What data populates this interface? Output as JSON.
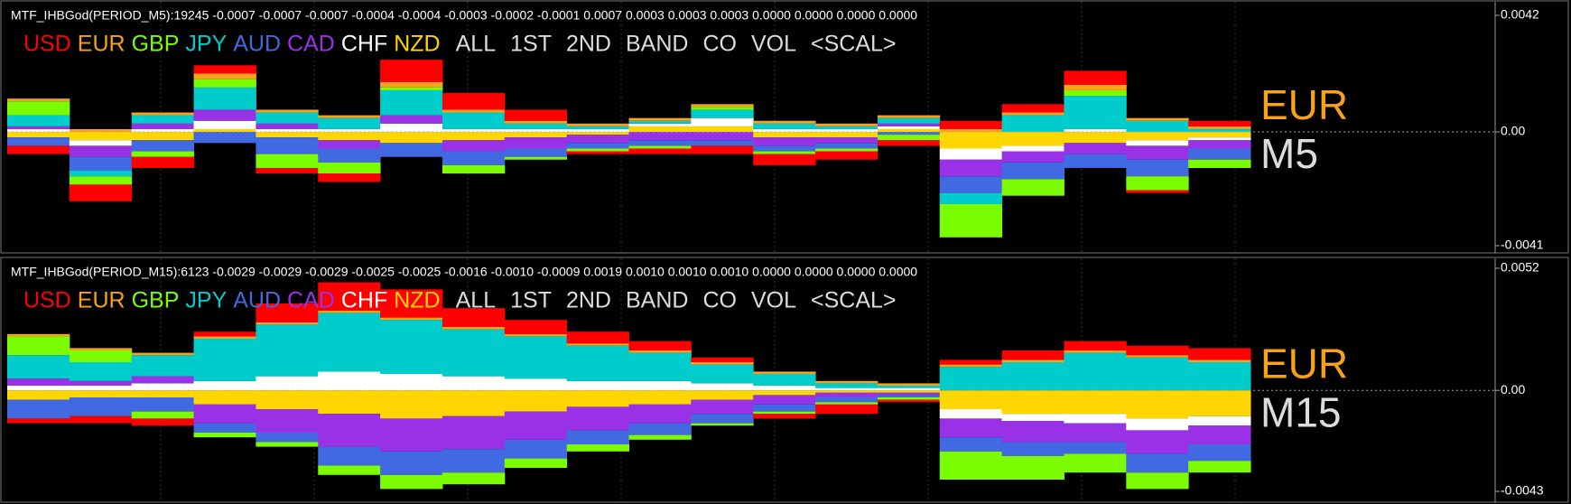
{
  "chart_data": [
    {
      "type": "bar",
      "stacked": true,
      "title": "MTF_IHBGod(PERIOD_M5):19245 -0.0007 -0.0007 -0.0007 -0.0004 -0.0004 -0.0003 -0.0002 -0.0001 0.0007 0.0003 0.0003 0.0003 0.0000 0.0000 0.0000 0.0000",
      "buttons": [
        "ALL",
        "1ST",
        "2ND",
        "BAND",
        "CO",
        "VOL",
        "<SCAL>"
      ],
      "currency_label": "EUR",
      "timeframe_label": "M5",
      "ylim": [
        -0.0041,
        0.0042
      ],
      "yticks": [
        0.0042,
        {
          "value": 0,
          "label": "0.00"
        },
        -0.0041
      ],
      "grid": true,
      "series": [
        {
          "name": "USD",
          "color": "#ff0000",
          "values": [
            -0.0003,
            -0.0006,
            -0.0004,
            0.0003,
            -0.0002,
            -0.0003,
            0.0008,
            0.0006,
            0.0004,
            -0.0001,
            -0.0002,
            -0.0003,
            -0.0004,
            -0.0003,
            -0.0002,
            0.0003,
            0.0003,
            0.0005,
            -0.0001,
            0.0002
          ]
        },
        {
          "name": "EUR",
          "color": "#f7a21b",
          "values": [
            0.0001,
            0.0001,
            0.0001,
            0.0002,
            0.0001,
            0.0001,
            0.0002,
            0.0001,
            0.0001,
            0.0001,
            0.0001,
            0.0001,
            0.0001,
            0.0001,
            0.0001,
            0.0001,
            0.0001,
            0.0002,
            0.0001,
            0.0001
          ]
        },
        {
          "name": "GBP",
          "color": "#7cfc00",
          "values": [
            0.0005,
            -0.0003,
            -0.0002,
            0.0003,
            -0.0005,
            -0.0004,
            0.0001,
            -0.0003,
            -0.0001,
            -0.0001,
            -0.0001,
            0.0001,
            -0.0001,
            -0.0001,
            -0.0002,
            -0.0012,
            -0.0006,
            0.0002,
            -0.0005,
            -0.0003
          ]
        },
        {
          "name": "JPY",
          "color": "#00cccc",
          "values": [
            0.0004,
            -0.0002,
            0.0003,
            0.0008,
            0.0004,
            0.0004,
            0.0009,
            0.0006,
            0.0002,
            0.0001,
            0.0001,
            0.0003,
            0.0002,
            0.0001,
            0.0002,
            -0.0004,
            0.0006,
            0.0012,
            0.0004,
            0.0001
          ]
        },
        {
          "name": "AUD",
          "color": "#4169e1",
          "values": [
            -0.0003,
            -0.0005,
            -0.0004,
            -0.0004,
            -0.0006,
            -0.0005,
            -0.0005,
            -0.0005,
            -0.0003,
            -0.0002,
            -0.0002,
            -0.0002,
            -0.0002,
            -0.0002,
            -0.0001,
            -0.0006,
            -0.0006,
            -0.0005,
            -0.0006,
            -0.0004
          ]
        },
        {
          "name": "CAD",
          "color": "#9932e6",
          "values": [
            0.0001,
            -0.0004,
            0.0002,
            0.0004,
            0.0002,
            -0.0003,
            0.0003,
            -0.0004,
            -0.0004,
            -0.0003,
            -0.0003,
            -0.0003,
            -0.0003,
            -0.0002,
            0.0001,
            -0.0006,
            -0.0004,
            -0.0004,
            -0.0005,
            -0.0003
          ]
        },
        {
          "name": "CHF",
          "color": "#ffffff",
          "values": [
            0.0001,
            -0.0002,
            0.0001,
            0.0003,
            0.0001,
            0.0001,
            0.0003,
            0.0001,
            0.0001,
            0.0001,
            0.0001,
            0.0003,
            0.0001,
            0.0001,
            0.0001,
            -0.0004,
            -0.0002,
            0.0001,
            -0.0002,
            -0.0001
          ]
        },
        {
          "name": "NZD",
          "color": "#ffd700",
          "values": [
            -0.0002,
            -0.0003,
            -0.0003,
            0.0001,
            -0.0002,
            -0.0003,
            -0.0004,
            -0.0003,
            -0.0002,
            -0.0001,
            0.0002,
            0.0002,
            -0.0002,
            -0.0002,
            0.0001,
            -0.0006,
            -0.0005,
            -0.0004,
            -0.0003,
            -0.0002
          ]
        }
      ]
    },
    {
      "type": "bar",
      "stacked": true,
      "title": "MTF_IHBGod(PERIOD_M15):6123 -0.0029 -0.0029 -0.0029 -0.0025 -0.0025 -0.0016 -0.0010 -0.0009 0.0019 0.0010 0.0010 0.0010 0.0000 0.0000 0.0000 0.0000",
      "buttons": [
        "ALL",
        "1ST",
        "2ND",
        "BAND",
        "CO",
        "VOL",
        "<SCAL>"
      ],
      "currency_label": "EUR",
      "timeframe_label": "M15",
      "ylim": [
        -0.0043,
        0.0052
      ],
      "yticks": [
        0.0052,
        {
          "value": 0,
          "label": "0.00"
        },
        -0.0043
      ],
      "grid": true,
      "series": [
        {
          "name": "USD",
          "color": "#ff0000",
          "values": [
            -0.0002,
            -0.0003,
            -0.0003,
            0.0002,
            0.0008,
            0.0012,
            0.0012,
            0.0008,
            0.0006,
            0.0005,
            0.0004,
            0.0002,
            -0.0002,
            -0.0004,
            -0.0001,
            0.0002,
            0.0004,
            0.0004,
            0.0004,
            0.0005
          ]
        },
        {
          "name": "EUR",
          "color": "#f7a21b",
          "values": [
            0.0001,
            0.0001,
            0.0001,
            0.0001,
            0.0001,
            0.0001,
            0.0001,
            0.0001,
            0.0001,
            0.0001,
            0.0001,
            0.0001,
            0.0001,
            0.0001,
            0.0001,
            0.0001,
            0.0001,
            0.0001,
            0.0001,
            0.0001
          ]
        },
        {
          "name": "GBP",
          "color": "#7cfc00",
          "values": [
            0.0008,
            0.0005,
            -0.0003,
            -0.0002,
            -0.0002,
            -0.0004,
            -0.0006,
            -0.0005,
            -0.0004,
            -0.0003,
            -0.0002,
            -0.0001,
            -0.0001,
            -0.0001,
            -0.0001,
            -0.0012,
            -0.001,
            -0.0008,
            -0.0007,
            -0.0005
          ]
        },
        {
          "name": "JPY",
          "color": "#00cccc",
          "values": [
            0.001,
            0.0008,
            0.0009,
            0.0018,
            0.0022,
            0.0025,
            0.0023,
            0.002,
            0.0018,
            0.0015,
            0.0012,
            0.0008,
            0.0005,
            0.0002,
            0.0001,
            0.001,
            0.0012,
            0.0016,
            0.0014,
            0.0012
          ]
        },
        {
          "name": "AUD",
          "color": "#4169e1",
          "values": [
            -0.0008,
            -0.0008,
            -0.0006,
            -0.0004,
            -0.0004,
            -0.0008,
            -0.001,
            -0.001,
            -0.0008,
            -0.0006,
            -0.0005,
            -0.0004,
            -0.0003,
            -0.0002,
            -0.0001,
            -0.0006,
            -0.0006,
            -0.0005,
            -0.0008,
            -0.0007
          ]
        },
        {
          "name": "CAD",
          "color": "#9932e6",
          "values": [
            0.0003,
            0.0002,
            0.0003,
            -0.0008,
            -0.001,
            -0.0014,
            -0.0014,
            -0.0014,
            -0.0012,
            -0.001,
            -0.0008,
            -0.0006,
            -0.0004,
            -0.0002,
            -0.0001,
            -0.0008,
            -0.0009,
            -0.0008,
            -0.001,
            -0.0008
          ]
        },
        {
          "name": "CHF",
          "color": "#ffffff",
          "values": [
            0.0002,
            0.0002,
            0.0003,
            0.0004,
            0.0006,
            0.0008,
            0.0007,
            0.0006,
            0.0005,
            0.0004,
            0.0004,
            0.0003,
            0.0002,
            0.0001,
            0.0001,
            -0.0004,
            -0.0003,
            -0.0004,
            -0.0005,
            -0.0004
          ]
        },
        {
          "name": "NZD",
          "color": "#ffd700",
          "values": [
            -0.0004,
            -0.0003,
            -0.0003,
            -0.0006,
            -0.0008,
            -0.001,
            -0.0012,
            -0.0011,
            -0.0009,
            -0.0007,
            -0.0006,
            -0.0004,
            -0.0002,
            -0.0001,
            -0.0001,
            -0.0008,
            -0.001,
            -0.001,
            -0.0012,
            -0.0011
          ]
        }
      ]
    }
  ]
}
